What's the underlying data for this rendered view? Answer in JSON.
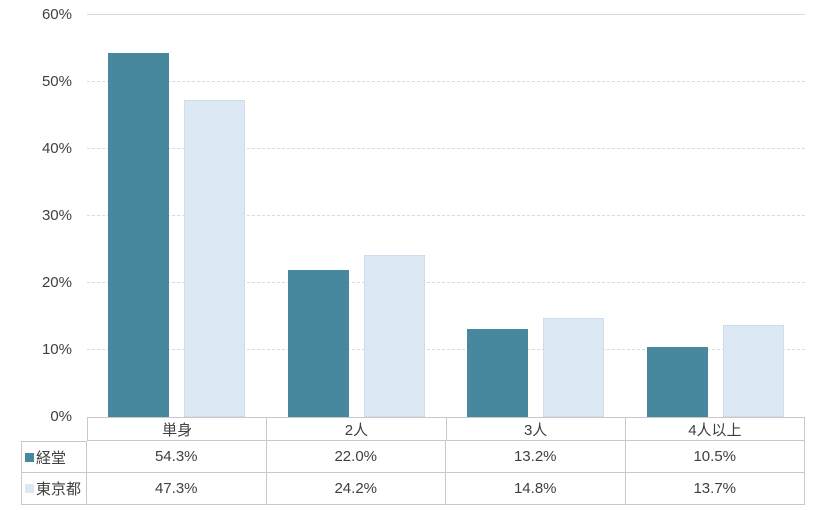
{
  "colors": {
    "series1_fill": "#48889F",
    "series2_fill": "#DCE8F3",
    "series2_border": "#C2D2E2",
    "gridline": "#D9D9D9",
    "table_border": "#C9C9C9",
    "text": "#404040",
    "background": "#FFFFFF"
  },
  "chart_data": {
    "type": "bar",
    "title": "",
    "xlabel": "",
    "ylabel": "",
    "categories": [
      "単身",
      "2人",
      "3人",
      "4人以上"
    ],
    "series": [
      {
        "name": "経堂",
        "color": "#48889F",
        "border": "",
        "values": [
          54.3,
          22.0,
          13.2,
          10.5
        ],
        "display": [
          "54.3%",
          "22.0%",
          "13.2%",
          "10.5%"
        ]
      },
      {
        "name": "東京都",
        "color": "#DCE8F3",
        "border": "#C2D2E2",
        "values": [
          47.3,
          24.2,
          14.8,
          13.7
        ],
        "display": [
          "47.3%",
          "24.2%",
          "14.8%",
          "13.7%"
        ]
      }
    ],
    "ylim": [
      0,
      60
    ],
    "yticks": [
      0,
      10,
      20,
      30,
      40,
      50,
      60
    ],
    "ytick_labels": [
      "0%",
      "10%",
      "20%",
      "30%",
      "40%",
      "50%",
      "60%"
    ],
    "grid": "horizontal-dashed",
    "legend_position": "data-table-left"
  }
}
